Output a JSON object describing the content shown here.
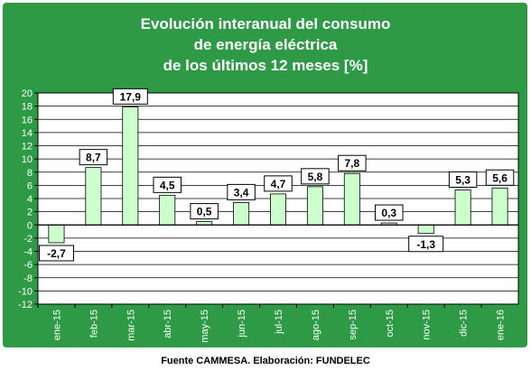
{
  "chart_data": {
    "type": "bar",
    "title_lines": [
      "Evolución interanual del consumo",
      "de energía eléctrica",
      "de los últimos 12 meses [%]"
    ],
    "categories": [
      "ene-15",
      "feb-15",
      "mar-15",
      "abr-15",
      "may-15",
      "jun-15",
      "jul-15",
      "ago-15",
      "sep-15",
      "oct-15",
      "nov-15",
      "dic-15",
      "ene-16"
    ],
    "values": [
      -2.7,
      8.7,
      17.9,
      4.5,
      0.5,
      3.4,
      4.7,
      5.8,
      7.8,
      0.3,
      -1.3,
      5.3,
      5.6
    ],
    "data_labels": [
      "-2,7",
      "8,7",
      "17,9",
      "4,5",
      "0,5",
      "3,4",
      "4,7",
      "5,8",
      "7,8",
      "0,3",
      "-1,3",
      "5,3",
      "5,6"
    ],
    "yticks": [
      "20",
      "18",
      "16",
      "14",
      "12",
      "10",
      "8",
      "6",
      "4",
      "2",
      "0",
      "-2",
      "-4",
      "-6",
      "-8",
      "-10",
      "-12"
    ],
    "ylim": [
      -12,
      20
    ],
    "grid": true,
    "colors": {
      "background": "#2e9a46",
      "plot_area": "#ffffff",
      "bar_fill": "#ccffcc",
      "bar_stroke": "#000000",
      "grid": "#000000"
    }
  },
  "source_note": "Fuente CAMMESA. Elaboración: FUNDELEC"
}
